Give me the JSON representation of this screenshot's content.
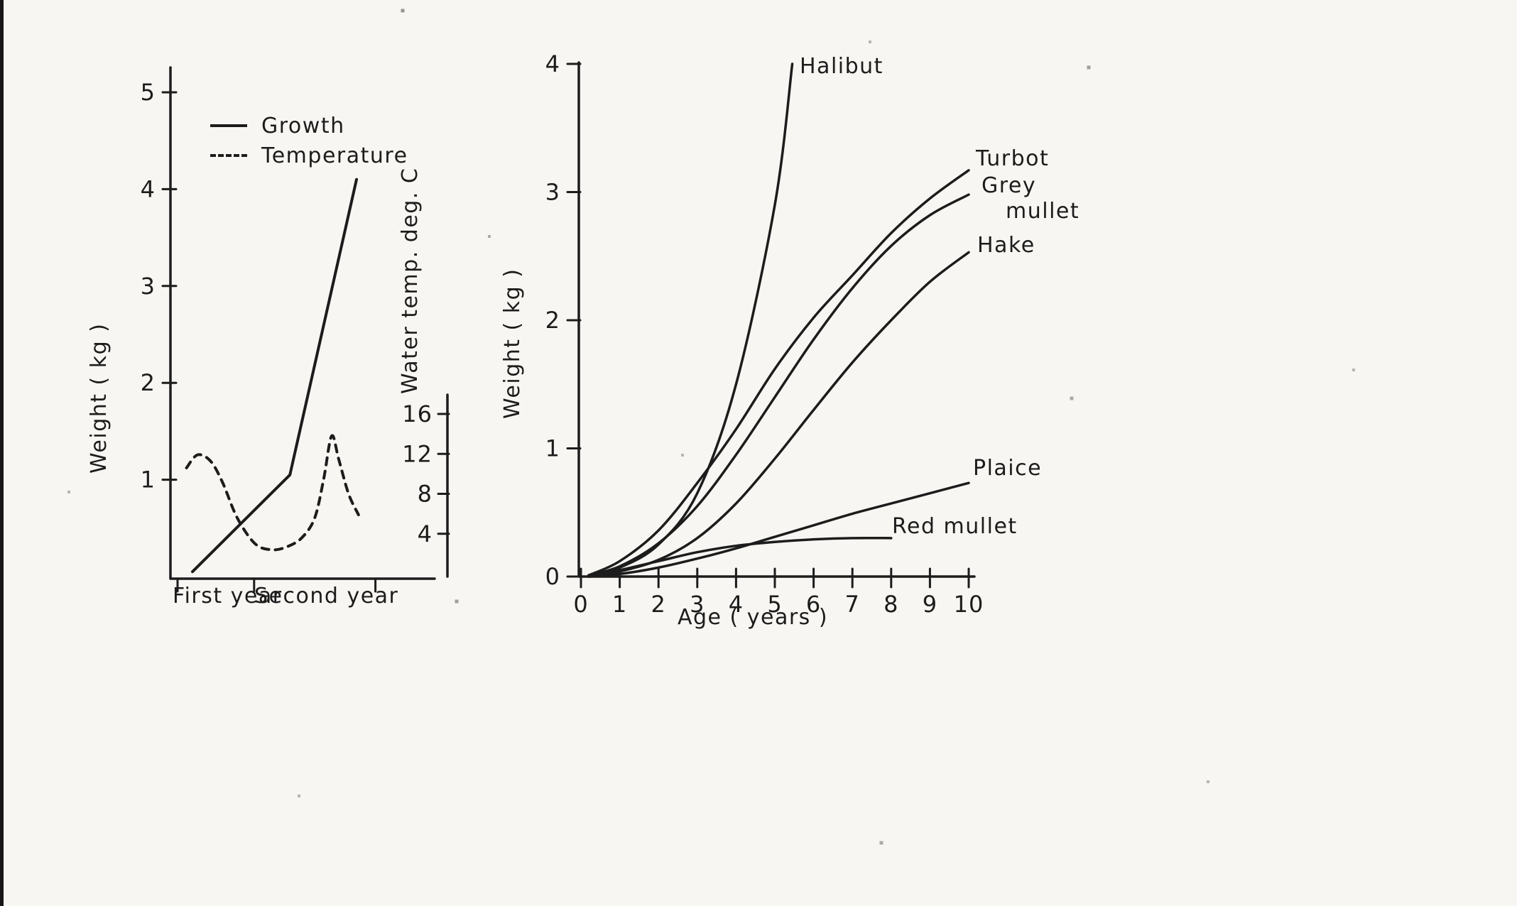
{
  "page": {
    "background": "#f7f6f2",
    "ink": "#1c1c1c"
  },
  "chart_data": [
    {
      "id": "seasonal-growth-chart",
      "type": "line",
      "title": "",
      "xlabel": "",
      "ylabel": "Weight ( kg )",
      "y2label": "Water temp. deg. C",
      "xtick_labels": [
        "First year",
        "Second year"
      ],
      "xlim": [
        0,
        2
      ],
      "ylim": [
        0,
        5.4
      ],
      "y2lim": [
        0,
        17
      ],
      "yticks": [
        5,
        4,
        3,
        2,
        1
      ],
      "y2ticks": [
        16,
        12,
        8,
        4
      ],
      "grid": false,
      "legend": {
        "position": "top-left",
        "entries": [
          {
            "label": "Growth",
            "line_style": "solid"
          },
          {
            "label": "Temperature",
            "line_style": "dashed"
          }
        ]
      },
      "series": [
        {
          "name": "Growth",
          "axis": "y",
          "line_style": "solid",
          "smooth": false,
          "points": [
            [
              0.15,
              0.05
            ],
            [
              1.13,
              1.05
            ],
            [
              1.8,
              4.1
            ]
          ]
        },
        {
          "name": "Temperature",
          "axis": "y2",
          "line_style": "dashed",
          "smooth": true,
          "points": [
            [
              0.09,
              10.6
            ],
            [
              0.2,
              11.9
            ],
            [
              0.33,
              11.3
            ],
            [
              0.45,
              9.2
            ],
            [
              0.6,
              5.6
            ],
            [
              0.78,
              3.0
            ],
            [
              0.95,
              2.4
            ],
            [
              1.1,
              2.7
            ],
            [
              1.25,
              3.6
            ],
            [
              1.38,
              5.6
            ],
            [
              1.47,
              9.5
            ],
            [
              1.55,
              13.8
            ],
            [
              1.62,
              11.5
            ],
            [
              1.72,
              8.0
            ],
            [
              1.82,
              5.9
            ]
          ]
        }
      ]
    },
    {
      "id": "species-growth-chart",
      "type": "line",
      "title": "",
      "xlabel": "Age ( years )",
      "ylabel": "Weight ( kg )",
      "xlim": [
        0,
        10
      ],
      "ylim": [
        0,
        4
      ],
      "xticks": [
        0,
        1,
        2,
        3,
        4,
        5,
        6,
        7,
        8,
        9,
        10
      ],
      "yticks": [
        0,
        1,
        2,
        3,
        4
      ],
      "grid": false,
      "series": [
        {
          "name": "Halibut",
          "line_style": "solid",
          "smooth": true,
          "points": [
            [
              0.2,
              0.01
            ],
            [
              1,
              0.07
            ],
            [
              2,
              0.25
            ],
            [
              3,
              0.65
            ],
            [
              4,
              1.5
            ],
            [
              5,
              2.9
            ],
            [
              5.45,
              4.0
            ]
          ]
        },
        {
          "name": "Turbot",
          "line_style": "solid",
          "smooth": true,
          "points": [
            [
              0.2,
              0.01
            ],
            [
              1,
              0.12
            ],
            [
              2,
              0.36
            ],
            [
              3,
              0.73
            ],
            [
              4,
              1.15
            ],
            [
              5,
              1.62
            ],
            [
              6,
              2.02
            ],
            [
              7,
              2.35
            ],
            [
              8,
              2.68
            ],
            [
              9,
              2.95
            ],
            [
              10,
              3.17
            ]
          ]
        },
        {
          "name": "Grey mullet",
          "line_style": "solid",
          "smooth": true,
          "points": [
            [
              0.2,
              0.01
            ],
            [
              1,
              0.08
            ],
            [
              2,
              0.26
            ],
            [
              3,
              0.55
            ],
            [
              4,
              0.95
            ],
            [
              5,
              1.4
            ],
            [
              6,
              1.85
            ],
            [
              7,
              2.25
            ],
            [
              8,
              2.58
            ],
            [
              9,
              2.82
            ],
            [
              10,
              2.98
            ]
          ]
        },
        {
          "name": "Hake",
          "line_style": "solid",
          "smooth": true,
          "points": [
            [
              0.2,
              0.0
            ],
            [
              1,
              0.04
            ],
            [
              2,
              0.13
            ],
            [
              3,
              0.3
            ],
            [
              4,
              0.57
            ],
            [
              5,
              0.92
            ],
            [
              6,
              1.3
            ],
            [
              7,
              1.67
            ],
            [
              8,
              2.0
            ],
            [
              9,
              2.3
            ],
            [
              10,
              2.53
            ]
          ]
        },
        {
          "name": "Plaice",
          "line_style": "solid",
          "smooth": true,
          "points": [
            [
              0.2,
              0.0
            ],
            [
              1,
              0.02
            ],
            [
              2,
              0.07
            ],
            [
              3,
              0.14
            ],
            [
              4,
              0.22
            ],
            [
              5,
              0.31
            ],
            [
              6,
              0.4
            ],
            [
              7,
              0.49
            ],
            [
              8,
              0.57
            ],
            [
              9,
              0.65
            ],
            [
              10,
              0.73
            ]
          ]
        },
        {
          "name": "Red mullet",
          "line_style": "solid",
          "smooth": true,
          "points": [
            [
              0.2,
              0.0
            ],
            [
              1,
              0.05
            ],
            [
              2,
              0.12
            ],
            [
              3,
              0.19
            ],
            [
              4,
              0.24
            ],
            [
              5,
              0.27
            ],
            [
              6,
              0.29
            ],
            [
              7,
              0.3
            ],
            [
              8,
              0.3
            ]
          ]
        }
      ]
    }
  ]
}
